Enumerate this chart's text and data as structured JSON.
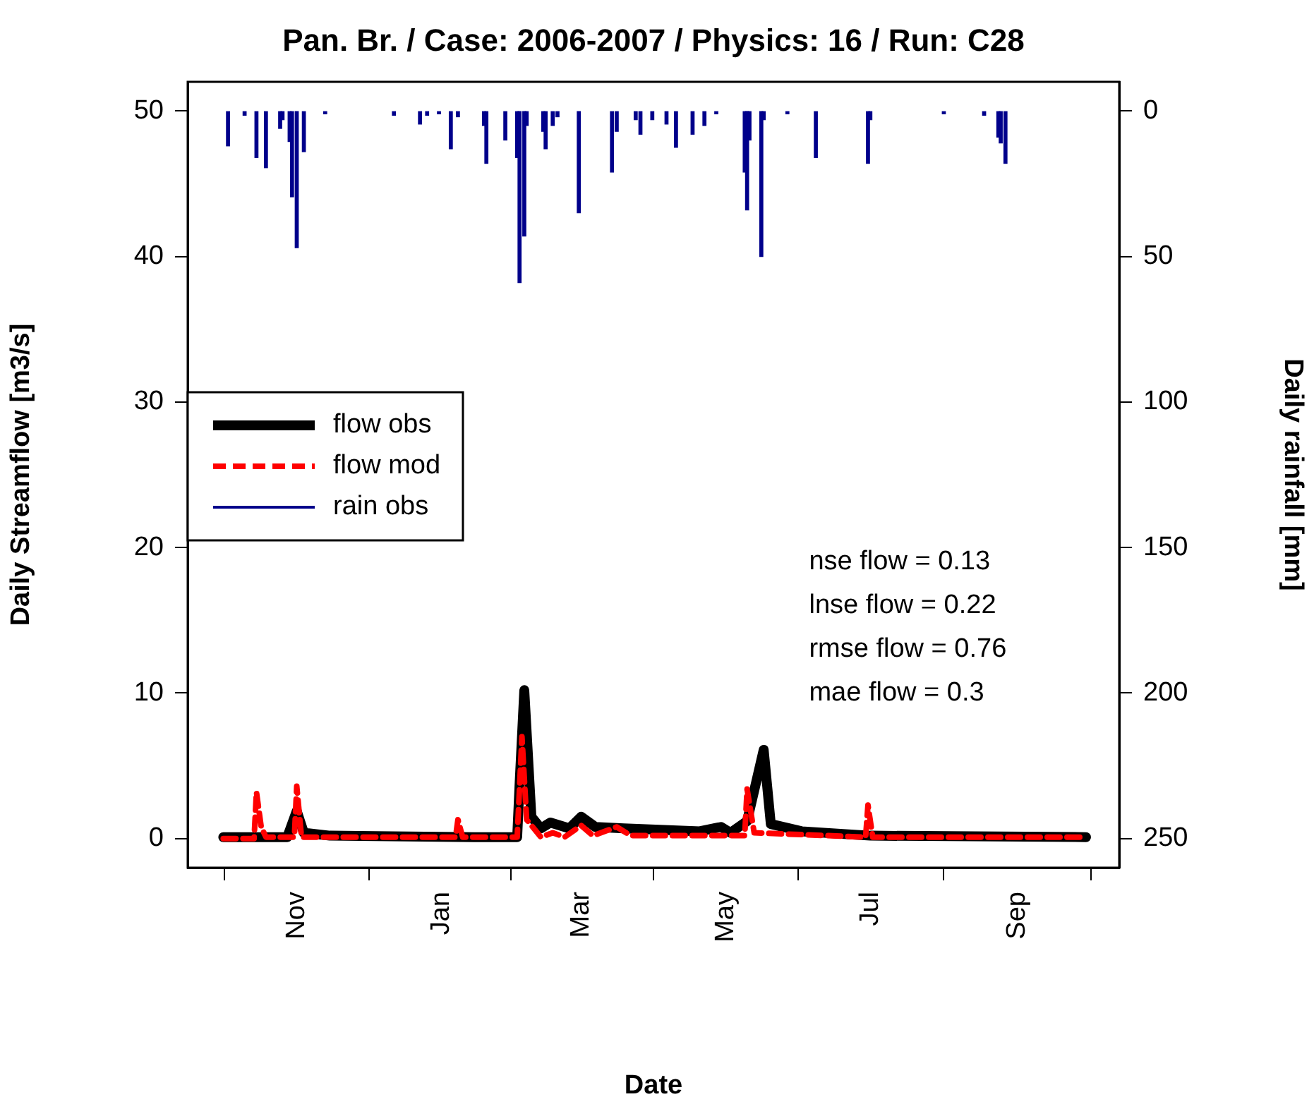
{
  "chart_data": {
    "type": "line",
    "title": "Pan. Br. / Case: 2006-2007 / Physics: 16 / Run: C28",
    "xlabel": "Date",
    "ylabel": "Daily Streamflow [m3/s]",
    "y2label": "Daily rainfall [mm]",
    "xlim": [
      "2006-09-16",
      "2007-10-14"
    ],
    "xticks": [
      {
        "value": "2006-11-01",
        "label": "Nov"
      },
      {
        "value": "2007-01-01",
        "label": "Jan"
      },
      {
        "value": "2007-03-01",
        "label": "Mar"
      },
      {
        "value": "2007-05-01",
        "label": "May"
      },
      {
        "value": "2007-07-01",
        "label": "Jul"
      },
      {
        "value": "2007-09-01",
        "label": "Sep"
      }
    ],
    "ylim": [
      -2,
      52
    ],
    "yticks": [
      0,
      10,
      20,
      30,
      40,
      50
    ],
    "y2lim": [
      260,
      -10
    ],
    "y2ticks": [
      0,
      50,
      100,
      150,
      200,
      250
    ],
    "grid": false,
    "legend": "left",
    "marker": "none",
    "annotations": [
      "nse flow = 0.13",
      "lnse flow = 0.22",
      "rmse flow = 0.76",
      "mae flow = 0.3"
    ],
    "series": [
      {
        "name": "flow obs",
        "color": "#000000",
        "line_style": "solid",
        "x": [
          "2006-10-01",
          "2006-10-28",
          "2006-11-01",
          "2006-11-04",
          "2006-11-15",
          "2007-01-15",
          "2007-02-02",
          "2007-02-03",
          "2007-02-05",
          "2007-02-08",
          "2007-02-12",
          "2007-02-16",
          "2007-02-24",
          "2007-03-01",
          "2007-03-07",
          "2007-03-19",
          "2007-04-20",
          "2007-04-29",
          "2007-05-03",
          "2007-05-10",
          "2007-05-17",
          "2007-05-20",
          "2007-06-02",
          "2007-07-01",
          "2007-09-30"
        ],
        "values": [
          0.1,
          0.1,
          1.9,
          0.4,
          0.2,
          0.1,
          0.1,
          3.7,
          10.2,
          1.5,
          0.7,
          1.1,
          0.7,
          1.5,
          0.8,
          0.7,
          0.5,
          0.8,
          0.4,
          1.2,
          6.1,
          1.0,
          0.5,
          0.2,
          0.1
        ]
      },
      {
        "name": "flow mod",
        "color": "#ff0000",
        "line_style": "dashed",
        "x": [
          "2006-10-01",
          "2006-10-14",
          "2006-10-15",
          "2006-10-17",
          "2006-10-19",
          "2006-10-31",
          "2006-11-01",
          "2006-11-03",
          "2007-01-07",
          "2007-01-08",
          "2007-01-10",
          "2007-02-02",
          "2007-02-03",
          "2007-02-04",
          "2007-02-06",
          "2007-02-12",
          "2007-02-17",
          "2007-02-22",
          "2007-03-01",
          "2007-03-06",
          "2007-03-16",
          "2007-03-22",
          "2007-05-09",
          "2007-05-10",
          "2007-05-13",
          "2007-06-29",
          "2007-06-30",
          "2007-07-02",
          "2007-09-30"
        ],
        "values": [
          0,
          0,
          3.2,
          0.8,
          0.1,
          0.1,
          3.6,
          0.1,
          0.1,
          1.3,
          0.1,
          0.1,
          3.5,
          7.0,
          1.3,
          0.1,
          0.4,
          0.1,
          0.9,
          0.2,
          0.8,
          0.2,
          0.2,
          3.4,
          0.4,
          0.1,
          2.3,
          0.1,
          0.1
        ]
      },
      {
        "name": "rain obs",
        "type": "bar",
        "axis": "y2",
        "color": "#00008b",
        "x": [
          "2006-10-03",
          "2006-10-10",
          "2006-10-15",
          "2006-10-19",
          "2006-10-25",
          "2006-10-26",
          "2006-10-29",
          "2006-10-30",
          "2006-11-01",
          "2006-11-04",
          "2006-11-13",
          "2006-12-12",
          "2006-12-23",
          "2006-12-26",
          "2006-12-31",
          "2007-01-05",
          "2007-01-08",
          "2007-01-19",
          "2007-01-20",
          "2007-01-28",
          "2007-02-02",
          "2007-02-03",
          "2007-02-05",
          "2007-02-06",
          "2007-02-13",
          "2007-02-14",
          "2007-02-17",
          "2007-02-19",
          "2007-02-28",
          "2007-03-14",
          "2007-03-16",
          "2007-03-24",
          "2007-03-26",
          "2007-03-31",
          "2007-04-06",
          "2007-04-10",
          "2007-04-17",
          "2007-04-22",
          "2007-04-27",
          "2007-05-09",
          "2007-05-10",
          "2007-05-11",
          "2007-05-16",
          "2007-05-17",
          "2007-05-27",
          "2007-06-08",
          "2007-06-30",
          "2007-07-01",
          "2007-08-01",
          "2007-08-18",
          "2007-08-24",
          "2007-08-25",
          "2007-08-27"
        ],
        "values": [
          12,
          1.5,
          16,
          19.5,
          6,
          3,
          10.5,
          29.5,
          47,
          14,
          1,
          1.5,
          4.5,
          1.5,
          1,
          13,
          2,
          5,
          18,
          10,
          16,
          59,
          43,
          5,
          7,
          13,
          5,
          2,
          35,
          21,
          7,
          3,
          8,
          3,
          4.5,
          12.5,
          8,
          5,
          1,
          21,
          34,
          10,
          50,
          3,
          1,
          16,
          18,
          3,
          1,
          1.5,
          9,
          11,
          18
        ]
      }
    ]
  }
}
